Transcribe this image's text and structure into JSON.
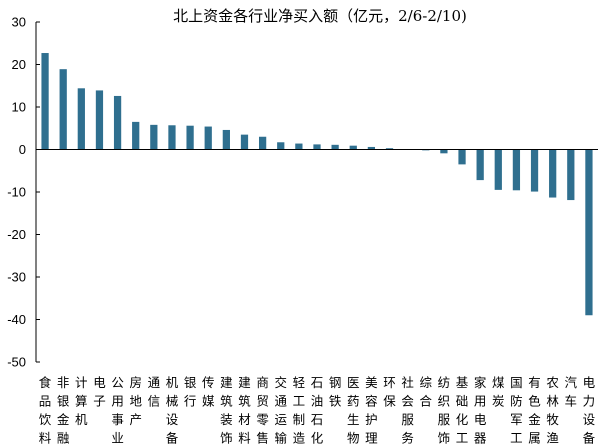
{
  "chart_data": {
    "type": "bar",
    "title": "北上资金各行业净买入额（亿元，2/6-2/10)",
    "xlabel": "",
    "ylabel": "",
    "ylim": [
      -50,
      30
    ],
    "yticks": [
      30,
      20,
      10,
      0,
      -10,
      -20,
      -30,
      -40,
      -50
    ],
    "grid": false,
    "bar_color": "#2f6f8f",
    "categories": [
      "食品饮料",
      "非银金融",
      "计算机",
      "电子",
      "公用事业",
      "房地产",
      "通信",
      "机械设备",
      "银行",
      "传媒",
      "建筑装饰",
      "建筑材料",
      "商贸零售",
      "交通运输",
      "轻工制造",
      "石油石化",
      "钢铁",
      "医药生物",
      "美容护理",
      "环保",
      "社会服务",
      "综合",
      "纺织服饰",
      "基础化工",
      "家用电器",
      "煤炭",
      "国防军工",
      "有色金属",
      "农林牧渔",
      "汽车",
      "电力设备"
    ],
    "values": [
      22.7,
      18.9,
      14.4,
      13.9,
      12.6,
      6.5,
      5.8,
      5.7,
      5.6,
      5.4,
      4.6,
      3.5,
      3.0,
      1.7,
      1.4,
      1.2,
      1.1,
      0.9,
      0.6,
      0.3,
      0.1,
      -0.2,
      -0.9,
      -3.5,
      -7.2,
      -9.5,
      -9.6,
      -9.9,
      -11.3,
      -11.9,
      -39.0
    ]
  }
}
